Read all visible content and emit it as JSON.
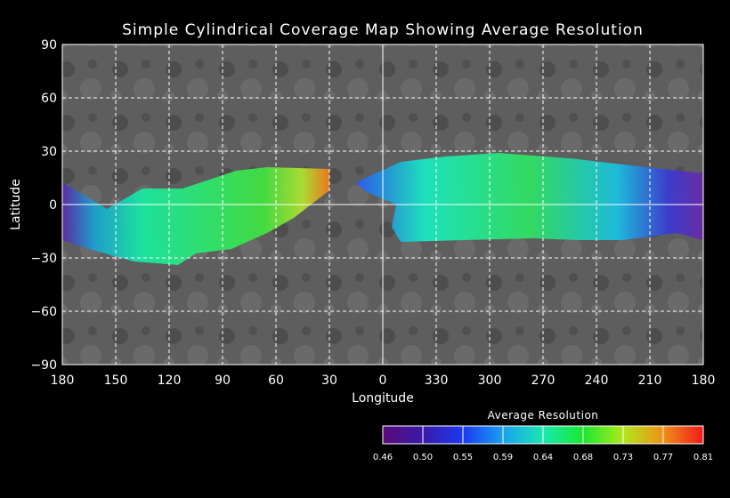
{
  "map": {
    "title": "Simple Cylindrical Coverage Map Showing Average Resolution",
    "x_axis_label": "Longitude",
    "y_axis_label": "Latitude",
    "x_ticks": [
      "180",
      "150",
      "120",
      "90",
      "60",
      "30",
      "0",
      "330",
      "300",
      "270",
      "240",
      "210",
      "180"
    ],
    "y_ticks": [
      "90",
      "60",
      "30",
      "0",
      "−30",
      "−60",
      "−90"
    ],
    "y_tick_values": [
      90,
      60,
      30,
      0,
      -30,
      -60,
      -90
    ],
    "grid_style": "dashed"
  },
  "colorbar": {
    "title": "Average Resolution",
    "tick_labels": [
      "0.46",
      "0.50",
      "0.55",
      "0.59",
      "0.64",
      "0.68",
      "0.73",
      "0.77",
      "0.81"
    ],
    "colors": [
      "#5a0a78",
      "#3a1aa8",
      "#1a3af0",
      "#1aa0f0",
      "#1ae8b0",
      "#1ae830",
      "#b0e81a",
      "#f0901a",
      "#f01a1a"
    ]
  }
}
